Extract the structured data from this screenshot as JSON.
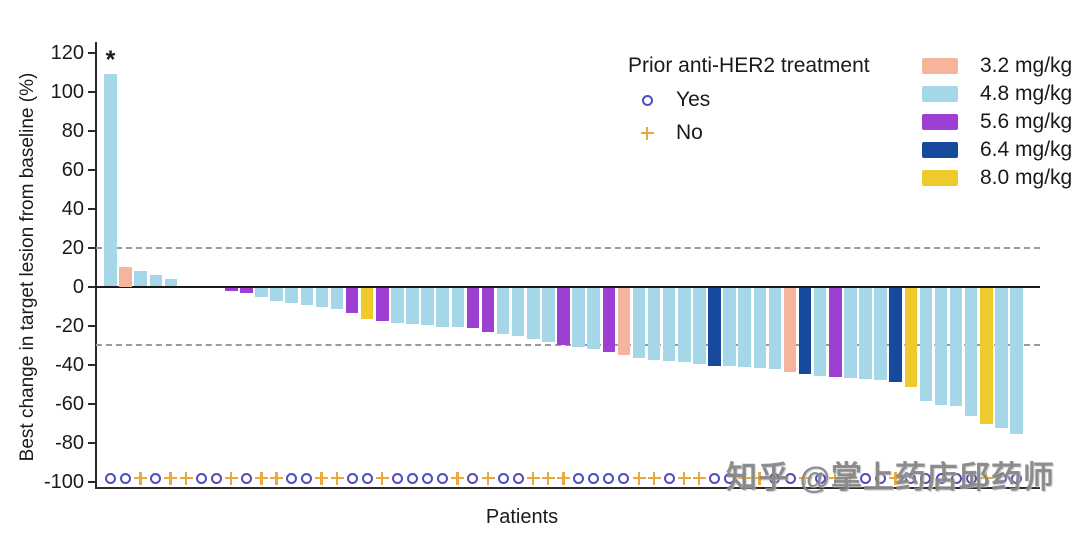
{
  "figure": {
    "watermark": "知乎 @掌上药店邱药师"
  },
  "chart_data": {
    "type": "bar",
    "subtype": "waterfall",
    "title": "",
    "xlabel": "Patients",
    "ylabel": "Best change in target lesion from baseline (%)",
    "ylim": [
      -100,
      120
    ],
    "yticks": [
      120,
      100,
      80,
      60,
      40,
      20,
      0,
      -20,
      -40,
      -60,
      -80,
      -100
    ],
    "reference_lines_y": [
      20,
      -30
    ],
    "grid": false,
    "asterisk_annotation": {
      "text": "*",
      "above_patient": 1
    },
    "marker_legend": {
      "title": "Prior anti-HER2 treatment",
      "items": [
        {
          "label": "Yes",
          "marker": "open-circle",
          "color": "#4d4dc0"
        },
        {
          "label": "No",
          "marker": "plus",
          "color": "#e9a93e"
        }
      ]
    },
    "dose_legend": [
      {
        "label": "3.2 mg/kg",
        "color": "#f6b49d"
      },
      {
        "label": "4.8 mg/kg",
        "color": "#a6d7e8"
      },
      {
        "label": "5.6 mg/kg",
        "color": "#9e3fd4"
      },
      {
        "label": "6.4 mg/kg",
        "color": "#17499c"
      },
      {
        "label": "8.0 mg/kg",
        "color": "#eecb2d"
      }
    ],
    "patients": [
      {
        "change_pct": 109,
        "dose": "4.8 mg/kg",
        "prior_anti_her2": "Yes"
      },
      {
        "change_pct": 10,
        "dose": "3.2 mg/kg",
        "prior_anti_her2": "Yes"
      },
      {
        "change_pct": 8,
        "dose": "4.8 mg/kg",
        "prior_anti_her2": "No"
      },
      {
        "change_pct": 6,
        "dose": "4.8 mg/kg",
        "prior_anti_her2": "Yes"
      },
      {
        "change_pct": 4,
        "dose": "4.8 mg/kg",
        "prior_anti_her2": "No"
      },
      {
        "change_pct": 0,
        "dose": "4.8 mg/kg",
        "prior_anti_her2": "No"
      },
      {
        "change_pct": 0,
        "dose": "4.8 mg/kg",
        "prior_anti_her2": "Yes"
      },
      {
        "change_pct": 0,
        "dose": "4.8 mg/kg",
        "prior_anti_her2": "Yes"
      },
      {
        "change_pct": -2,
        "dose": "5.6 mg/kg",
        "prior_anti_her2": "No"
      },
      {
        "change_pct": -3,
        "dose": "5.6 mg/kg",
        "prior_anti_her2": "Yes"
      },
      {
        "change_pct": -5,
        "dose": "4.8 mg/kg",
        "prior_anti_her2": "No"
      },
      {
        "change_pct": -7,
        "dose": "4.8 mg/kg",
        "prior_anti_her2": "No"
      },
      {
        "change_pct": -8,
        "dose": "4.8 mg/kg",
        "prior_anti_her2": "Yes"
      },
      {
        "change_pct": -9,
        "dose": "4.8 mg/kg",
        "prior_anti_her2": "Yes"
      },
      {
        "change_pct": -10,
        "dose": "4.8 mg/kg",
        "prior_anti_her2": "No"
      },
      {
        "change_pct": -11,
        "dose": "4.8 mg/kg",
        "prior_anti_her2": "No"
      },
      {
        "change_pct": -13,
        "dose": "5.6 mg/kg",
        "prior_anti_her2": "Yes"
      },
      {
        "change_pct": -16,
        "dose": "8.0 mg/kg",
        "prior_anti_her2": "Yes"
      },
      {
        "change_pct": -17,
        "dose": "5.6 mg/kg",
        "prior_anti_her2": "No"
      },
      {
        "change_pct": -18,
        "dose": "4.8 mg/kg",
        "prior_anti_her2": "Yes"
      },
      {
        "change_pct": -18.5,
        "dose": "4.8 mg/kg",
        "prior_anti_her2": "Yes"
      },
      {
        "change_pct": -19,
        "dose": "4.8 mg/kg",
        "prior_anti_her2": "Yes"
      },
      {
        "change_pct": -20,
        "dose": "4.8 mg/kg",
        "prior_anti_her2": "Yes"
      },
      {
        "change_pct": -20.5,
        "dose": "4.8 mg/kg",
        "prior_anti_her2": "No"
      },
      {
        "change_pct": -21,
        "dose": "5.6 mg/kg",
        "prior_anti_her2": "Yes"
      },
      {
        "change_pct": -23,
        "dose": "5.6 mg/kg",
        "prior_anti_her2": "No"
      },
      {
        "change_pct": -24,
        "dose": "4.8 mg/kg",
        "prior_anti_her2": "Yes"
      },
      {
        "change_pct": -25,
        "dose": "4.8 mg/kg",
        "prior_anti_her2": "Yes"
      },
      {
        "change_pct": -26.5,
        "dose": "4.8 mg/kg",
        "prior_anti_her2": "No"
      },
      {
        "change_pct": -28,
        "dose": "4.8 mg/kg",
        "prior_anti_her2": "No"
      },
      {
        "change_pct": -29.5,
        "dose": "5.6 mg/kg",
        "prior_anti_her2": "No"
      },
      {
        "change_pct": -30.5,
        "dose": "4.8 mg/kg",
        "prior_anti_her2": "Yes"
      },
      {
        "change_pct": -31.5,
        "dose": "4.8 mg/kg",
        "prior_anti_her2": "Yes"
      },
      {
        "change_pct": -33,
        "dose": "5.6 mg/kg",
        "prior_anti_her2": "Yes"
      },
      {
        "change_pct": -34.5,
        "dose": "3.2 mg/kg",
        "prior_anti_her2": "Yes"
      },
      {
        "change_pct": -36,
        "dose": "4.8 mg/kg",
        "prior_anti_her2": "No"
      },
      {
        "change_pct": -37,
        "dose": "4.8 mg/kg",
        "prior_anti_her2": "No"
      },
      {
        "change_pct": -37.5,
        "dose": "4.8 mg/kg",
        "prior_anti_her2": "Yes"
      },
      {
        "change_pct": -38,
        "dose": "4.8 mg/kg",
        "prior_anti_her2": "No"
      },
      {
        "change_pct": -39,
        "dose": "4.8 mg/kg",
        "prior_anti_her2": "No"
      },
      {
        "change_pct": -40,
        "dose": "6.4 mg/kg",
        "prior_anti_her2": "Yes"
      },
      {
        "change_pct": -40.5,
        "dose": "4.8 mg/kg",
        "prior_anti_her2": "Yes"
      },
      {
        "change_pct": -41,
        "dose": "4.8 mg/kg",
        "prior_anti_her2": "No"
      },
      {
        "change_pct": -41.5,
        "dose": "4.8 mg/kg",
        "prior_anti_her2": "No"
      },
      {
        "change_pct": -42,
        "dose": "4.8 mg/kg",
        "prior_anti_her2": "Yes"
      },
      {
        "change_pct": -43.5,
        "dose": "3.2 mg/kg",
        "prior_anti_her2": "Yes"
      },
      {
        "change_pct": -44.5,
        "dose": "6.4 mg/kg",
        "prior_anti_her2": "No"
      },
      {
        "change_pct": -45.5,
        "dose": "4.8 mg/kg",
        "prior_anti_her2": "Yes"
      },
      {
        "change_pct": -46,
        "dose": "5.6 mg/kg",
        "prior_anti_her2": "No"
      },
      {
        "change_pct": -46.5,
        "dose": "4.8 mg/kg",
        "prior_anti_her2": "No"
      },
      {
        "change_pct": -47,
        "dose": "4.8 mg/kg",
        "prior_anti_her2": "Yes"
      },
      {
        "change_pct": -47.5,
        "dose": "4.8 mg/kg",
        "prior_anti_her2": "Yes"
      },
      {
        "change_pct": -48.5,
        "dose": "6.4 mg/kg",
        "prior_anti_her2": "No"
      },
      {
        "change_pct": -51,
        "dose": "8.0 mg/kg",
        "prior_anti_her2": "Yes"
      },
      {
        "change_pct": -58,
        "dose": "4.8 mg/kg",
        "prior_anti_her2": "Yes"
      },
      {
        "change_pct": -60,
        "dose": "4.8 mg/kg",
        "prior_anti_her2": "Yes"
      },
      {
        "change_pct": -61,
        "dose": "4.8 mg/kg",
        "prior_anti_her2": "Yes"
      },
      {
        "change_pct": -66,
        "dose": "4.8 mg/kg",
        "prior_anti_her2": "Yes"
      },
      {
        "change_pct": -70,
        "dose": "8.0 mg/kg",
        "prior_anti_her2": "No"
      },
      {
        "change_pct": -72,
        "dose": "4.8 mg/kg",
        "prior_anti_her2": "Yes"
      },
      {
        "change_pct": -75,
        "dose": "4.8 mg/kg",
        "prior_anti_her2": "Yes"
      }
    ]
  }
}
